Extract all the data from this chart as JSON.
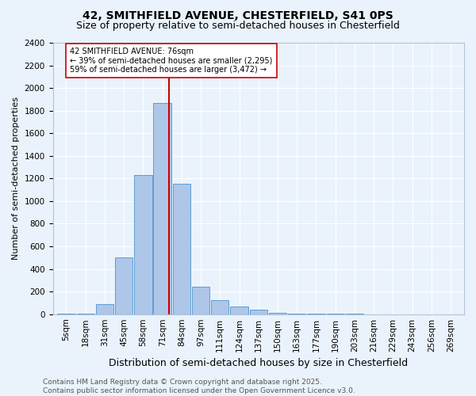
{
  "title1": "42, SMITHFIELD AVENUE, CHESTERFIELD, S41 0PS",
  "title2": "Size of property relative to semi-detached houses in Chesterfield",
  "xlabel": "Distribution of semi-detached houses by size in Chesterfield",
  "ylabel": "Number of semi-detached properties",
  "footer": "Contains HM Land Registry data © Crown copyright and database right 2025.\nContains public sector information licensed under the Open Government Licence v3.0.",
  "bin_labels": [
    "5sqm",
    "18sqm",
    "31sqm",
    "45sqm",
    "58sqm",
    "71sqm",
    "84sqm",
    "97sqm",
    "111sqm",
    "124sqm",
    "137sqm",
    "150sqm",
    "163sqm",
    "177sqm",
    "190sqm",
    "203sqm",
    "216sqm",
    "229sqm",
    "243sqm",
    "256sqm",
    "269sqm"
  ],
  "values": [
    5,
    5,
    90,
    500,
    1230,
    1870,
    1150,
    245,
    125,
    70,
    40,
    15,
    8,
    5,
    3,
    2,
    1,
    1,
    0,
    0,
    0
  ],
  "bar_color": "#aec6e8",
  "bar_edge_color": "#5a9fd4",
  "property_bin_index": 5,
  "vline_color": "#cc0000",
  "annotation_text": "42 SMITHFIELD AVENUE: 76sqm\n← 39% of semi-detached houses are smaller (2,295)\n59% of semi-detached houses are larger (3,472) →",
  "annotation_box_color": "#ffffff",
  "annotation_border_color": "#cc0000",
  "ylim": [
    0,
    2400
  ],
  "yticks": [
    0,
    200,
    400,
    600,
    800,
    1000,
    1200,
    1400,
    1600,
    1800,
    2000,
    2200,
    2400
  ],
  "background_color": "#eaf3fb",
  "plot_background": "#eaf3fb",
  "title1_fontsize": 10,
  "title2_fontsize": 9,
  "xlabel_fontsize": 9,
  "ylabel_fontsize": 8,
  "footer_fontsize": 6.5,
  "tick_fontsize": 7.5,
  "annotation_fontsize": 7
}
